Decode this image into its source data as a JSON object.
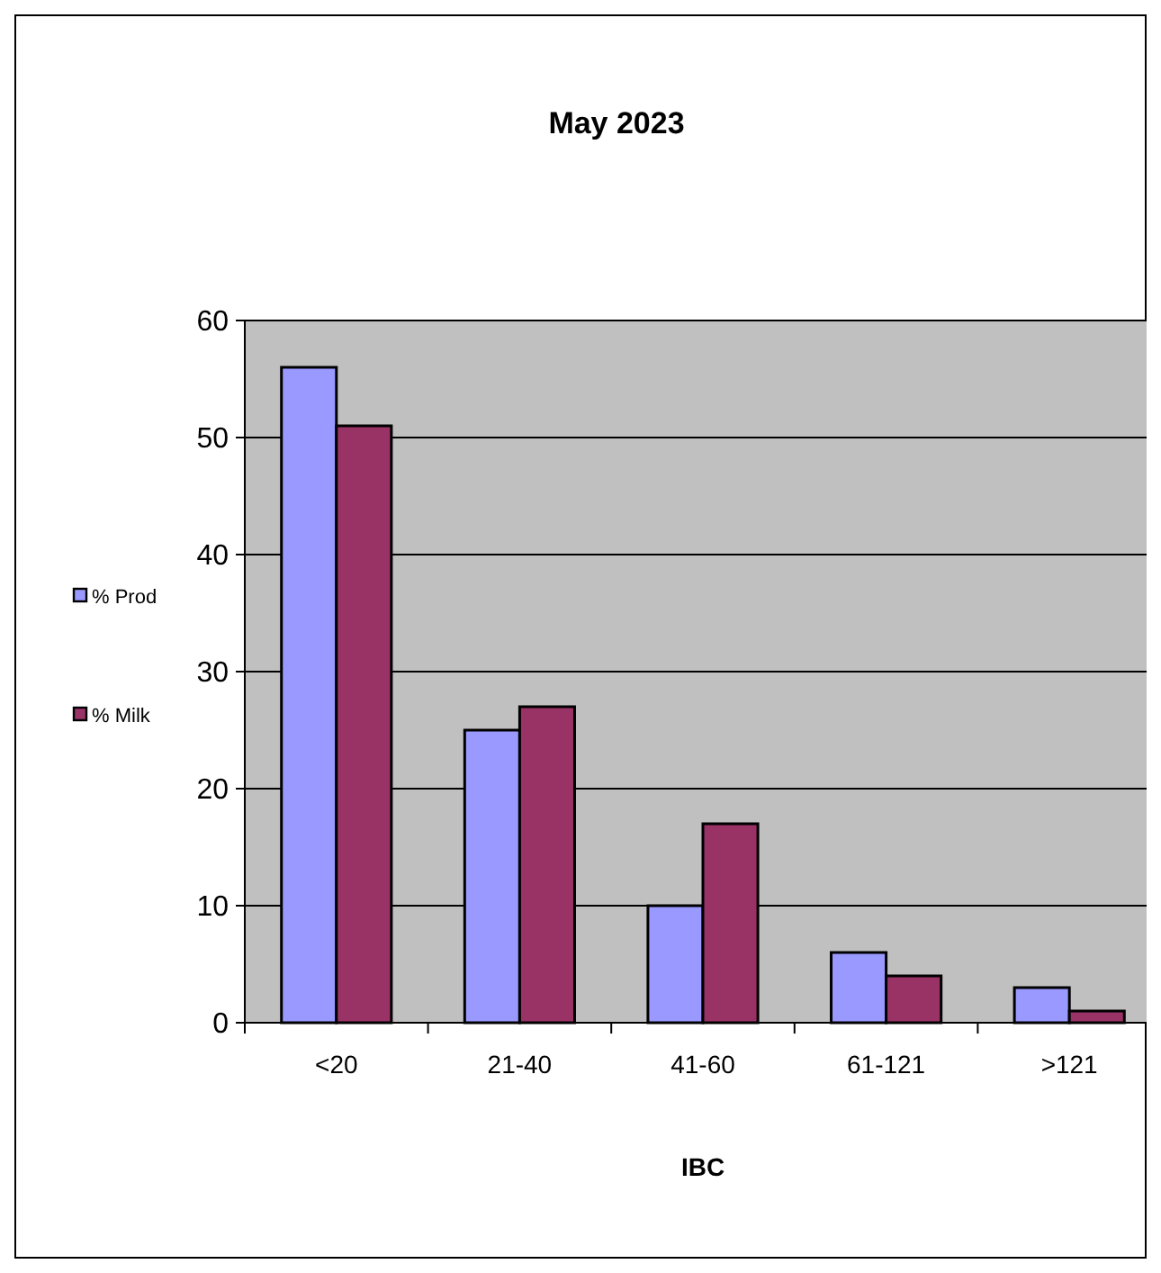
{
  "chart_data": {
    "type": "bar",
    "title": "May 2023",
    "xlabel": "IBC",
    "categories": [
      "<20",
      "21-40",
      "41-60",
      "61-121",
      ">121"
    ],
    "series": [
      {
        "name": "% Prod",
        "color": "#9999ff",
        "values": [
          56,
          25,
          10,
          6,
          3
        ]
      },
      {
        "name": "% Milk",
        "color": "#993366",
        "values": [
          51,
          27,
          17,
          4,
          1
        ]
      }
    ],
    "ylim": [
      0,
      60
    ],
    "yticks": [
      0,
      10,
      20,
      30,
      40,
      50,
      60
    ],
    "grid": "y",
    "legend": "left"
  }
}
